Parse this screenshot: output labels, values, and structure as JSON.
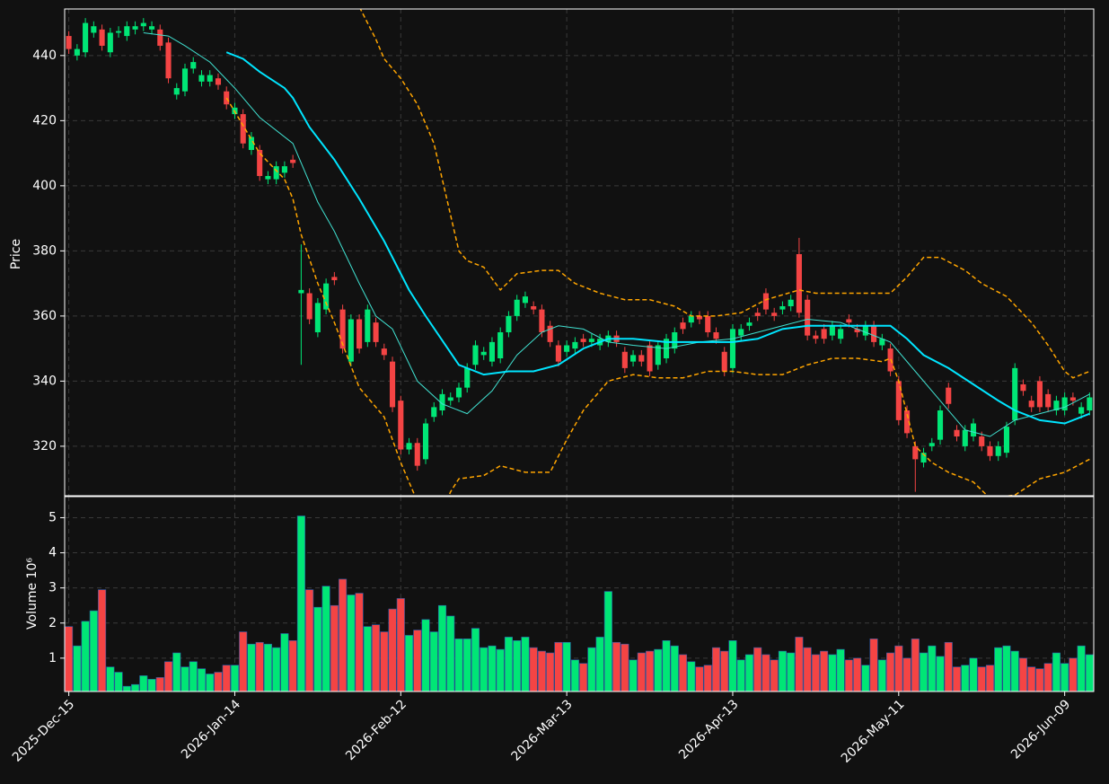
{
  "chart_data": [
    {
      "type": "candlestick",
      "ylabel": "Price",
      "categories": [
        "2025-Dec-15",
        null,
        null,
        null,
        null,
        null,
        null,
        null,
        null,
        null,
        null,
        null,
        null,
        null,
        null,
        null,
        null,
        null,
        null,
        null,
        "2026-Jan-14",
        null,
        null,
        null,
        null,
        null,
        null,
        null,
        null,
        null,
        null,
        null,
        null,
        null,
        null,
        null,
        null,
        null,
        null,
        null,
        "2026-Feb-12",
        null,
        null,
        null,
        null,
        null,
        null,
        null,
        null,
        null,
        null,
        null,
        null,
        null,
        null,
        null,
        null,
        null,
        null,
        null,
        "2026-Mar-13",
        null,
        null,
        null,
        null,
        null,
        null,
        null,
        null,
        null,
        null,
        null,
        null,
        null,
        null,
        null,
        null,
        null,
        null,
        null,
        "2026-Apr-13",
        null,
        null,
        null,
        null,
        null,
        null,
        null,
        null,
        null,
        null,
        null,
        null,
        null,
        null,
        null,
        null,
        null,
        null,
        null,
        "2026-May-11",
        null,
        null,
        null,
        null,
        null,
        null,
        null,
        null,
        null,
        null,
        null,
        null,
        null,
        null,
        null,
        null,
        null,
        null,
        null,
        "2026-Jun-09",
        null,
        null,
        null
      ],
      "open": [
        446,
        440,
        441,
        447,
        448,
        441,
        447,
        446,
        448,
        449,
        448,
        448,
        444,
        428,
        429,
        436,
        432,
        432,
        433,
        429,
        422,
        422,
        411,
        411,
        402,
        402,
        404,
        408,
        367,
        367,
        355,
        362,
        372,
        362,
        346,
        359,
        352,
        358,
        350,
        346,
        334,
        319,
        321,
        316,
        329,
        331,
        334,
        335,
        338,
        345,
        348,
        346,
        347,
        355,
        360,
        364,
        363,
        362,
        357,
        351,
        349,
        350,
        353,
        352,
        351,
        352,
        354,
        349,
        346,
        348,
        351,
        345,
        347,
        350,
        358,
        358,
        360,
        360,
        355,
        349,
        344,
        354,
        357,
        361,
        367,
        361,
        362,
        363,
        379,
        365,
        354,
        356,
        354,
        353,
        359,
        356,
        354,
        357,
        351,
        350,
        340,
        331,
        320,
        315,
        320,
        322,
        338,
        325,
        320,
        323,
        323,
        320,
        317,
        318,
        328,
        339,
        334,
        340,
        336,
        331,
        331,
        335,
        330,
        331
      ],
      "high": [
        447.5,
        443.5,
        451.5,
        450.5,
        449.5,
        448.5,
        449,
        450.5,
        450.5,
        451.5,
        450.5,
        449.5,
        445.5,
        431.5,
        437.5,
        439.5,
        435.5,
        435.5,
        434.5,
        430.5,
        425.5,
        423.5,
        416.5,
        412.5,
        404.5,
        407.5,
        407.5,
        409.5,
        382,
        368.5,
        365.5,
        371.5,
        373.5,
        363.5,
        360.5,
        360.5,
        363.5,
        359.5,
        351.5,
        347.5,
        335.5,
        322.5,
        322.5,
        328.5,
        333.5,
        337.5,
        336.5,
        339.5,
        345.5,
        352.5,
        350.5,
        353.5,
        356.5,
        361.5,
        366.5,
        367.5,
        364.5,
        363.5,
        358.5,
        352.5,
        352.5,
        353.5,
        354.5,
        354.5,
        354.5,
        355.5,
        355.5,
        350.5,
        349.5,
        349.5,
        352.5,
        352.5,
        354.5,
        356.5,
        359.5,
        361.5,
        361.5,
        361.5,
        356.5,
        350.5,
        357.5,
        357.5,
        359.5,
        362.5,
        368.5,
        362.5,
        364.5,
        366.5,
        384,
        366.5,
        355.5,
        357.5,
        358.5,
        357.5,
        360.5,
        357.5,
        358.5,
        358.5,
        354.5,
        351.5,
        341.5,
        332.5,
        321.5,
        319.5,
        322.5,
        332.5,
        339.5,
        326.5,
        326.5,
        328.5,
        324.5,
        321.5,
        321.5,
        327.5,
        345.5,
        340.5,
        335.5,
        341.5,
        337.5,
        335.5,
        336.5,
        336.5,
        333.5,
        336.5
      ],
      "low": [
        440.5,
        438.5,
        439.5,
        445.5,
        441.5,
        439.5,
        445.5,
        444.5,
        446.5,
        447.5,
        446.5,
        441.5,
        431.5,
        426.5,
        427.5,
        434.5,
        430.5,
        430.5,
        429.5,
        423.5,
        420.5,
        411.5,
        409.5,
        401.5,
        400.5,
        400.5,
        402.5,
        405.5,
        345,
        357.5,
        353.5,
        360.5,
        369.5,
        348.5,
        344.5,
        348.5,
        350.5,
        350.5,
        346.5,
        330.5,
        317.5,
        317.5,
        312.5,
        314.5,
        327.5,
        329.5,
        332.5,
        333.5,
        336.5,
        343.5,
        346.5,
        344.5,
        345.5,
        353.5,
        358.5,
        362.5,
        360.5,
        353.5,
        350.5,
        344.5,
        347.5,
        348.5,
        350.5,
        350.5,
        349.5,
        350.5,
        350.5,
        342.5,
        344.5,
        344.5,
        341.5,
        343.5,
        345.5,
        348.5,
        354.5,
        356.5,
        357.5,
        353.5,
        351.5,
        341.5,
        342.5,
        352.5,
        355.5,
        358.5,
        360.5,
        358.5,
        360.5,
        361.5,
        359.5,
        352.5,
        351.5,
        351.5,
        352.5,
        351.5,
        356.5,
        353.5,
        352.5,
        350.5,
        349.5,
        341.5,
        326.5,
        322.5,
        306,
        313.5,
        318.5,
        320.5,
        331.5,
        321.5,
        318.5,
        321.5,
        318.5,
        315.5,
        315.5,
        316.5,
        326.5,
        335.5,
        330.5,
        330.5,
        330.5,
        329.5,
        329.5,
        332.5,
        328.5,
        329.5
      ],
      "close": [
        442,
        442,
        450,
        449,
        443,
        447,
        447.5,
        449,
        449,
        450,
        449,
        443,
        433,
        430,
        436,
        438,
        434,
        434,
        431,
        425,
        424,
        413,
        415,
        403,
        403,
        406,
        406,
        407,
        368,
        359,
        364,
        370,
        371,
        350,
        359,
        350,
        362,
        352,
        348,
        332,
        319,
        321,
        314,
        327,
        332,
        336,
        335,
        338,
        344,
        351,
        349,
        352,
        355,
        360,
        365,
        366,
        362,
        355,
        352,
        346,
        351,
        352,
        352,
        353,
        353,
        354,
        352,
        344,
        348,
        346,
        343,
        351,
        353,
        355,
        356,
        360,
        359,
        355,
        353,
        343,
        356,
        356,
        358,
        360,
        362,
        360,
        363,
        365,
        361,
        354,
        353,
        353,
        357,
        356,
        358,
        355,
        357,
        352,
        353,
        343,
        328,
        324,
        316,
        318,
        321,
        331,
        333,
        323,
        325,
        327,
        320,
        317,
        320,
        326,
        344,
        337,
        332,
        332,
        332,
        334,
        335,
        334,
        332,
        335
      ],
      "up_color": "#00e676",
      "down_color": "#f44444",
      "series": [
        {
          "color": "#40e0d0",
          "width": 1,
          "dash": false,
          "x": [
            9,
            12,
            14,
            17,
            20,
            23,
            27,
            30,
            32,
            35,
            37,
            39,
            42,
            45,
            48,
            51,
            54,
            57,
            59,
            62,
            65,
            68,
            72,
            76,
            80,
            83,
            86,
            89,
            93,
            96,
            99,
            102,
            105,
            108,
            111,
            114,
            117,
            120,
            123
          ],
          "values": [
            447,
            446,
            443,
            438,
            430,
            421,
            413,
            395,
            386,
            370,
            360,
            356,
            340,
            333,
            330,
            337,
            348,
            355,
            357,
            356,
            352,
            351,
            350,
            352,
            353,
            355,
            357,
            359,
            358,
            355,
            352,
            343,
            334,
            325,
            323,
            328,
            330,
            332,
            336
          ]
        },
        {
          "color": "#00e5ff",
          "width": 2,
          "dash": false,
          "x": [
            19,
            21,
            23,
            26,
            27,
            29,
            32,
            35,
            38,
            41,
            43,
            47,
            50,
            53,
            56,
            59,
            62,
            65,
            68,
            72,
            76,
            80,
            83,
            86,
            89,
            92,
            96,
            99,
            101,
            103,
            106,
            109,
            112,
            114,
            117,
            120,
            123
          ],
          "values": [
            441,
            439,
            435,
            430,
            427,
            418,
            408,
            396,
            383,
            368,
            360,
            345,
            342,
            343,
            343,
            345,
            350,
            353,
            353,
            352,
            352,
            352,
            353,
            356,
            357,
            357,
            357,
            357,
            353,
            348,
            344,
            339,
            334,
            331,
            328,
            327,
            330
          ]
        },
        {
          "color": "#ffa500",
          "width": 1.5,
          "dash": true,
          "x": [
            33,
            35,
            37,
            38,
            40,
            42,
            44,
            45,
            47,
            48,
            50,
            52,
            54,
            57,
            59,
            61,
            64,
            67,
            70,
            73,
            75,
            78,
            81,
            84,
            88,
            90,
            93,
            96,
            99,
            101,
            103,
            105,
            108,
            110,
            113,
            116,
            118,
            120,
            121,
            123
          ],
          "values": [
            462,
            455,
            445,
            439,
            433,
            425,
            413,
            402,
            380,
            377,
            375,
            368,
            373,
            374,
            374,
            370,
            367,
            365,
            365,
            363,
            360,
            360,
            361,
            365,
            368,
            367,
            367,
            367,
            367,
            372,
            378,
            378,
            374,
            370,
            366,
            358,
            351,
            343,
            341,
            343
          ]
        },
        {
          "color": "#ffa500",
          "width": 1.5,
          "dash": true,
          "x": [
            19,
            23,
            26,
            27,
            28,
            30,
            32,
            35,
            38,
            40,
            42,
            43,
            45,
            46,
            47,
            50,
            52,
            55,
            58,
            60,
            62,
            65,
            68,
            71,
            74,
            77,
            80,
            83,
            86,
            89,
            92,
            95,
            98,
            99,
            100,
            102,
            104,
            106,
            109,
            111,
            114,
            117,
            120,
            123
          ],
          "values": [
            427,
            410,
            402,
            396,
            385,
            370,
            358,
            338,
            329,
            315,
            303,
            299,
            300,
            306,
            310,
            311,
            314,
            312,
            312,
            322,
            331,
            340,
            342,
            341,
            341,
            343,
            343,
            342,
            342,
            345,
            347,
            347,
            346,
            347,
            340,
            320,
            315,
            312,
            309,
            304,
            305,
            310,
            312,
            316
          ]
        }
      ],
      "ylim": [
        304.8,
        454.3
      ],
      "yticks": [
        320,
        340,
        360,
        380,
        400,
        420,
        440
      ],
      "grid": true
    },
    {
      "type": "bar",
      "ylabel": "Volume  10⁶",
      "values": [
        1.9,
        1.35,
        2.05,
        2.35,
        2.95,
        0.75,
        0.6,
        0.2,
        0.25,
        0.5,
        0.4,
        0.45,
        0.9,
        1.15,
        0.75,
        0.9,
        0.7,
        0.55,
        0.6,
        0.8,
        0.8,
        1.75,
        1.4,
        1.45,
        1.4,
        1.3,
        1.7,
        1.5,
        5.05,
        2.95,
        2.45,
        3.05,
        2.5,
        3.25,
        2.8,
        2.85,
        1.9,
        1.95,
        1.75,
        2.4,
        2.7,
        1.65,
        1.8,
        2.1,
        1.75,
        2.5,
        2.2,
        1.55,
        1.55,
        1.85,
        1.3,
        1.35,
        1.25,
        1.6,
        1.5,
        1.6,
        1.3,
        1.2,
        1.15,
        1.45,
        1.45,
        0.95,
        0.85,
        1.3,
        1.6,
        2.9,
        1.45,
        1.4,
        0.95,
        1.15,
        1.2,
        1.25,
        1.5,
        1.35,
        1.1,
        0.9,
        0.75,
        0.8,
        1.3,
        1.2,
        1.5,
        0.95,
        1.1,
        1.3,
        1.1,
        0.95,
        1.2,
        1.15,
        1.6,
        1.3,
        1.1,
        1.2,
        1.1,
        1.25,
        0.95,
        1.0,
        0.8,
        1.55,
        0.95,
        1.15,
        1.35,
        1.0,
        1.55,
        1.15,
        1.35,
        1.05,
        1.45,
        0.75,
        0.8,
        1.0,
        0.75,
        0.8,
        1.3,
        1.35,
        1.2,
        1.0,
        0.75,
        0.7,
        0.85,
        1.15,
        0.85,
        1.0,
        1.35,
        1.1
      ],
      "ylim": [
        0.05,
        5.6
      ],
      "yticks": [
        1,
        2,
        3,
        4,
        5
      ],
      "grid": true
    }
  ]
}
